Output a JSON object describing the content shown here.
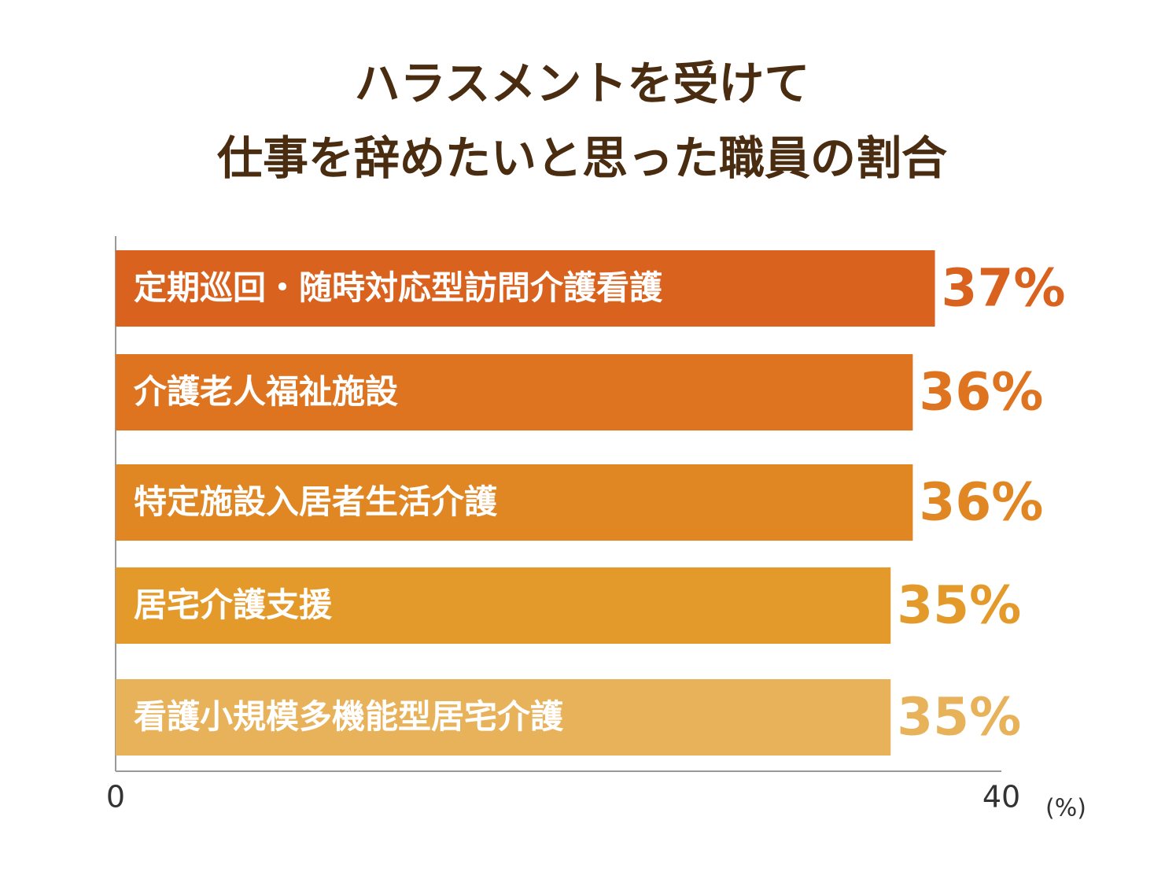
{
  "chart_data": {
    "type": "hbar",
    "title": [
      "ハラスメントを受けて",
      "仕事を辞めたいと思った職員の割合"
    ],
    "categories": [
      "定期巡回・随時対応型訪問介護看護",
      "介護老人福祉施設",
      "特定施設入居者生活介護",
      "居宅介護支援",
      "看護小規模多機能型居宅介護"
    ],
    "values": [
      37,
      36,
      36,
      35,
      35
    ],
    "value_labels": [
      "37%",
      "36%",
      "36%",
      "35%",
      "35%"
    ],
    "colors": [
      "#d9621e",
      "#de7420",
      "#e08622",
      "#e39a2a",
      "#e8b25b"
    ],
    "xlim": [
      0,
      40
    ],
    "xticks": [
      0,
      40
    ],
    "x_unit": "(%)"
  }
}
